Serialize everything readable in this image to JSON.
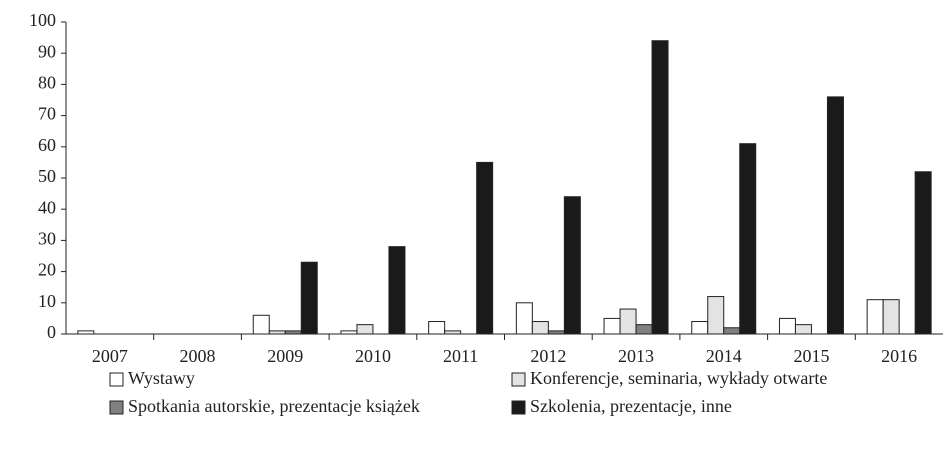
{
  "chart_data": {
    "type": "bar",
    "categories": [
      "2007",
      "2008",
      "2009",
      "2010",
      "2011",
      "2012",
      "2013",
      "2014",
      "2015",
      "2016"
    ],
    "series": [
      {
        "name": "Wystawy",
        "color": "#ffffff",
        "values": [
          1,
          0,
          6,
          1,
          4,
          10,
          5,
          4,
          5,
          11
        ]
      },
      {
        "name": "Konferencje, seminaria, wykłady otwarte",
        "color": "#e3e3e3",
        "values": [
          0,
          0,
          1,
          3,
          1,
          4,
          8,
          12,
          3,
          11
        ]
      },
      {
        "name": "Spotkania autorskie, prezentacje książek",
        "color": "#808080",
        "values": [
          0,
          0,
          1,
          0,
          0,
          1,
          3,
          2,
          0,
          0
        ]
      },
      {
        "name": "Szkolenia, prezentacje, inne",
        "color": "#1a1a1a",
        "values": [
          0,
          0,
          23,
          28,
          55,
          44,
          94,
          61,
          76,
          52
        ]
      }
    ],
    "ylim": [
      0,
      100
    ],
    "yticks": [
      0,
      10,
      20,
      30,
      40,
      50,
      60,
      70,
      80,
      90,
      100
    ],
    "grid": false
  }
}
